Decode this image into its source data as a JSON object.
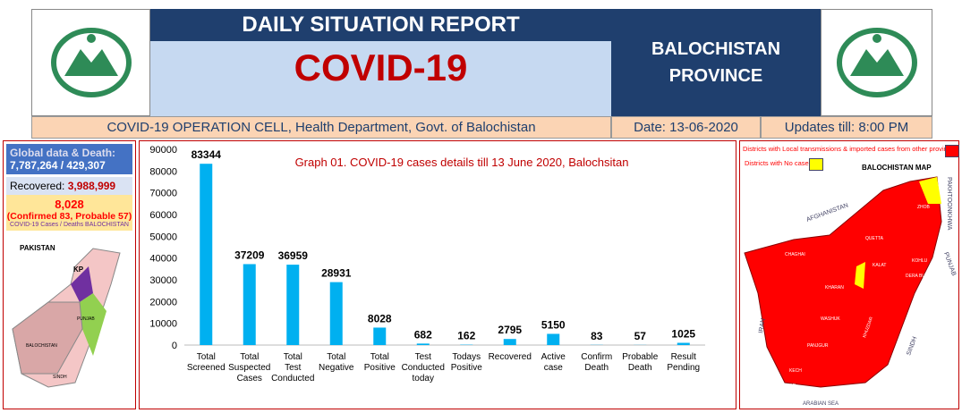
{
  "header": {
    "title_top": "DAILY SITUATION REPORT",
    "title_main": "COVID-19",
    "province": "BALOCHISTAN PROVINCE",
    "cell": "COVID-19 OPERATION CELL, Health Department, Govt. of Balochistan",
    "date": "Date: 13-06-2020",
    "updates": "Updates till: 8:00 PM"
  },
  "left": {
    "global_label": "Global data & Death:",
    "global_value": "7,787,264 / 429,307",
    "recovered_label": "Recovered:",
    "recovered_value": "3,988,999",
    "bal_total": "8,028",
    "bal_detail": "(Confirmed 83, Probable 57)",
    "bal_caption": "COVID-19 Cases / Deaths BALOCHISTAN",
    "map_title": "PAKISTAN",
    "map_labels": [
      "KP",
      "PUNJAB",
      "BALOCHISTAN",
      "SINDH"
    ]
  },
  "map": {
    "legend1": "Districts with Local transmissions & imported cases from other provinces",
    "legend2": "Districts with No cases",
    "title": "BALOCHISTAN MAP",
    "labels": [
      "AFGHANISTAN",
      "IRAN",
      "PAKHTOONKHWA",
      "PUNJAB",
      "SINDH",
      "ARABIAN SEA",
      "CHAGHAI",
      "KHARAN",
      "WASHUK",
      "PANJGUR",
      "KECH",
      "GWADAR",
      "KHUZDAR",
      "KALAT",
      "QUETTA",
      "ZHOB",
      "KOHLU",
      "DERA BUGTI"
    ],
    "colors": {
      "cases": "#ff0000",
      "no_cases": "#ffff00"
    }
  },
  "chart_data": {
    "type": "bar",
    "title": "Graph 01. COVID-19 cases details till 13 June 2020, Balochsitan",
    "categories": [
      "Total Screened",
      "Total Suspected Cases",
      "Total Test Conducted",
      "Total Negative",
      "Total Positive",
      "Test Conducted today",
      "Todays Positive",
      "Recovered",
      "Active case",
      "Confirm Death",
      "Probable Death",
      "Result Pending"
    ],
    "values": [
      83344,
      37209,
      36959,
      28931,
      8028,
      682,
      162,
      2795,
      5150,
      83,
      57,
      1025
    ],
    "ylim": [
      0,
      90000
    ],
    "yticks": [
      0,
      10000,
      20000,
      30000,
      40000,
      50000,
      60000,
      70000,
      80000,
      90000
    ],
    "color": "#00b0f0"
  }
}
